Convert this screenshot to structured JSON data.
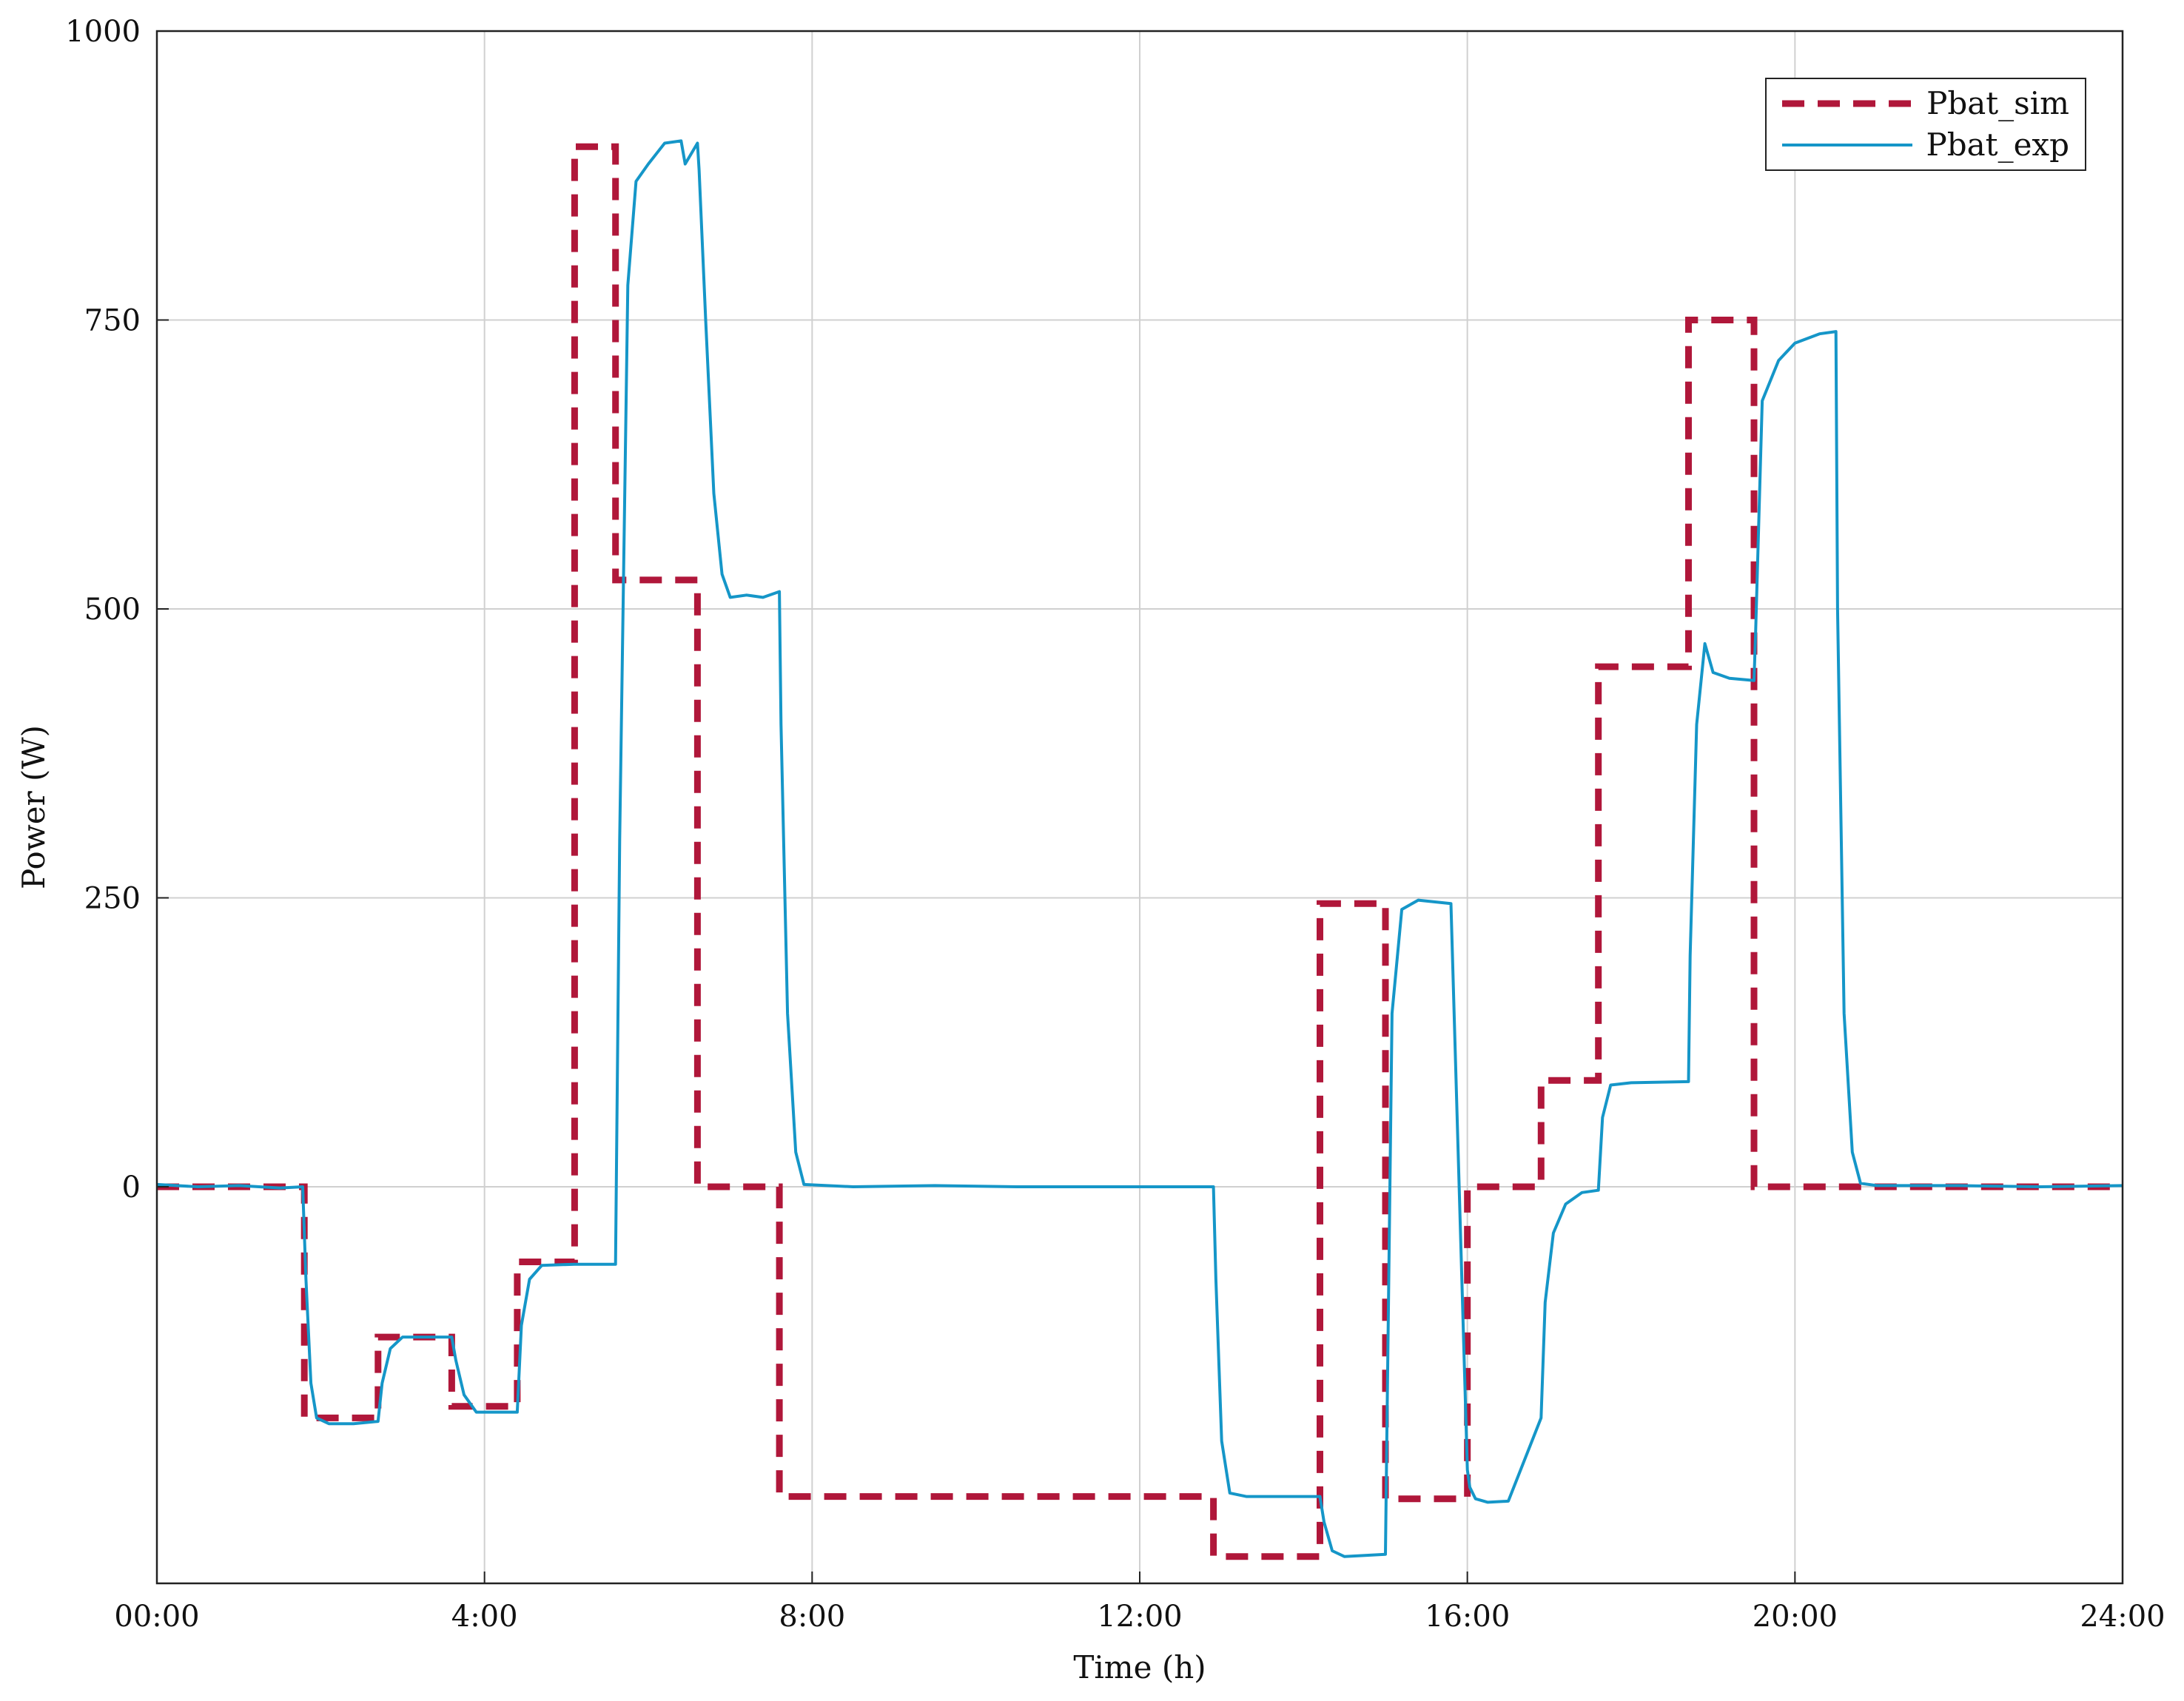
{
  "chart_data": {
    "type": "line",
    "title": "",
    "xlabel": "Time (h)",
    "ylabel": "Power (W)",
    "x_ticks": [
      "00:00",
      "4:00",
      "8:00",
      "12:00",
      "16:00",
      "20:00",
      "24:00"
    ],
    "y_ticks": [
      "0",
      "250",
      "500",
      "750",
      "1000"
    ],
    "xlim": [
      0,
      24
    ],
    "ylim": [
      -345,
      1000
    ],
    "grid": true,
    "legend_position": "top-right",
    "colors": {
      "sim": "#b0173a",
      "exp": "#1596c8"
    },
    "series": [
      {
        "name": "Pbat_sim",
        "style": "dashed",
        "x": [
          0,
          1.8,
          1.8,
          2.7,
          2.7,
          3.6,
          3.6,
          4.4,
          4.4,
          5.1,
          5.1,
          5.6,
          5.6,
          6.6,
          6.6,
          7.6,
          7.6,
          12.9,
          12.9,
          14.2,
          14.2,
          15.0,
          15.0,
          16.0,
          16.0,
          16.9,
          16.9,
          17.6,
          17.6,
          18.7,
          18.7,
          19.5,
          19.5,
          20.5,
          20.5,
          24
        ],
        "y": [
          0,
          0,
          -200,
          -200,
          -130,
          -130,
          -190,
          -190,
          -65,
          -65,
          900,
          900,
          525,
          525,
          0,
          0,
          -268,
          -268,
          -320,
          -320,
          245,
          245,
          -270,
          -270,
          0,
          0,
          92,
          92,
          450,
          450,
          750,
          750,
          0,
          0,
          0,
          0
        ]
      },
      {
        "name": "Pbat_exp",
        "style": "solid",
        "x": [
          0,
          0.5,
          1.0,
          1.5,
          1.78,
          1.82,
          1.88,
          1.95,
          2.1,
          2.4,
          2.7,
          2.75,
          2.85,
          3.0,
          3.6,
          3.65,
          3.75,
          3.9,
          4.4,
          4.45,
          4.55,
          4.7,
          5.1,
          5.6,
          5.65,
          5.75,
          5.85,
          6.0,
          6.2,
          6.4,
          6.45,
          6.6,
          6.62,
          6.7,
          6.8,
          6.9,
          7.0,
          7.2,
          7.4,
          7.6,
          7.62,
          7.7,
          7.8,
          7.9,
          8.5,
          9.5,
          10.5,
          11.5,
          12.9,
          12.93,
          13.0,
          13.1,
          13.3,
          14.2,
          14.25,
          14.35,
          14.5,
          15.0,
          15.02,
          15.08,
          15.2,
          15.4,
          15.8,
          16.0,
          16.03,
          16.1,
          16.25,
          16.5,
          16.9,
          16.95,
          17.05,
          17.2,
          17.4,
          17.6,
          17.65,
          17.75,
          18.0,
          18.7,
          18.72,
          18.8,
          18.9,
          19.0,
          19.2,
          19.5,
          19.52,
          19.6,
          19.8,
          20.0,
          20.3,
          20.5,
          20.52,
          20.6,
          20.7,
          20.8,
          21.0,
          22,
          23,
          24
        ],
        "y": [
          2,
          0,
          1,
          -1,
          0,
          -80,
          -170,
          -200,
          -205,
          -205,
          -203,
          -170,
          -140,
          -130,
          -130,
          -150,
          -180,
          -195,
          -195,
          -120,
          -80,
          -68,
          -67,
          -67,
          300,
          780,
          870,
          885,
          903,
          905,
          885,
          903,
          880,
          750,
          600,
          530,
          510,
          512,
          510,
          515,
          400,
          150,
          30,
          2,
          0,
          1,
          0,
          0,
          0,
          -80,
          -220,
          -265,
          -268,
          -268,
          -290,
          -315,
          -320,
          -318,
          -200,
          150,
          240,
          248,
          245,
          -245,
          -260,
          -270,
          -273,
          -272,
          -200,
          -100,
          -40,
          -15,
          -5,
          -3,
          60,
          88,
          90,
          91,
          200,
          400,
          470,
          445,
          440,
          438,
          480,
          680,
          715,
          730,
          738,
          740,
          500,
          150,
          30,
          3,
          1,
          1,
          0,
          1
        ]
      }
    ]
  }
}
